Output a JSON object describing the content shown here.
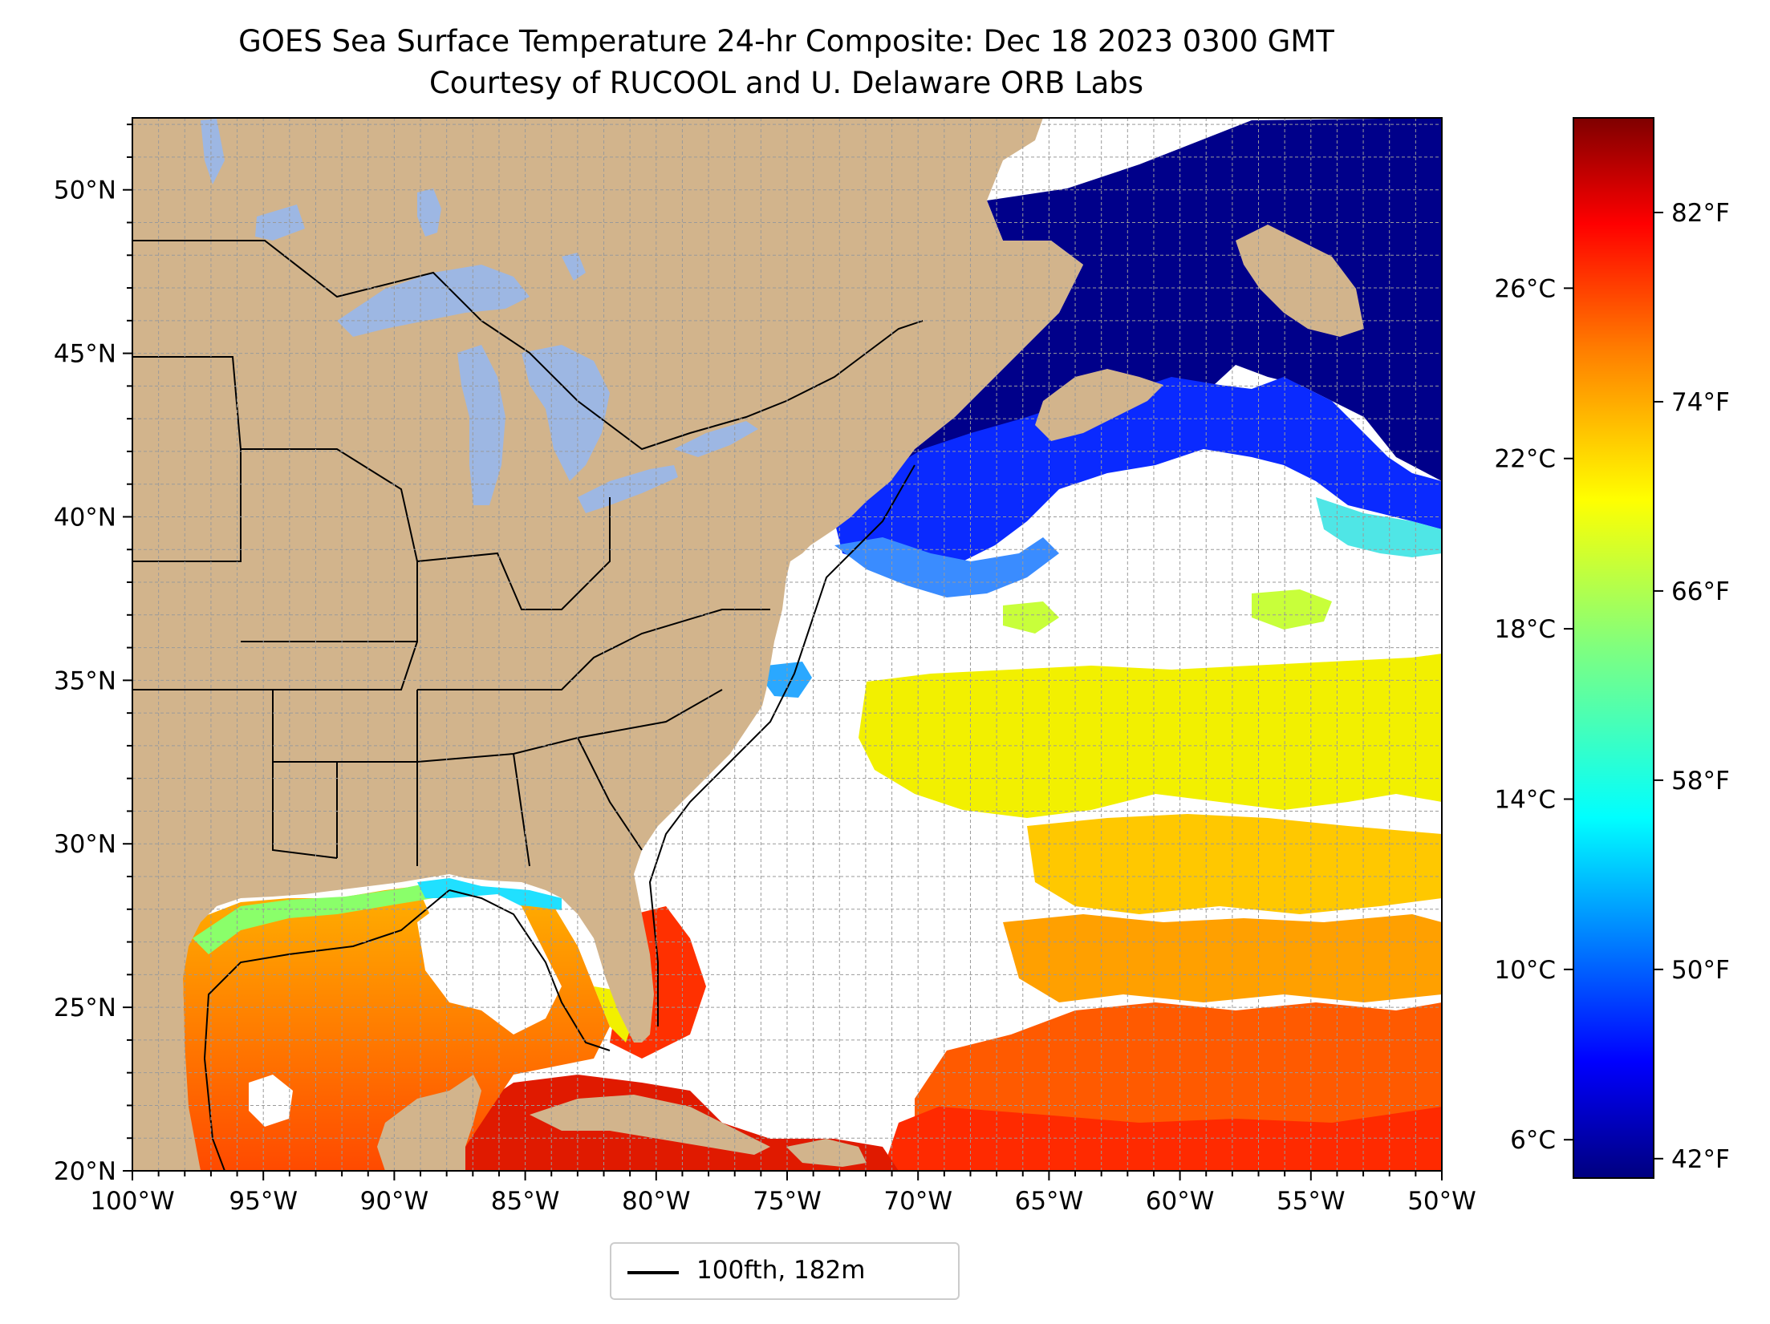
{
  "title_line1": "GOES Sea Surface Temperature 24-hr Composite: Dec 18 2023 0300 GMT",
  "title_line2": "Courtesy of RUCOOL and U. Delaware ORB Labs",
  "map": {
    "lon_range": [
      -100,
      -50
    ],
    "lat_range": [
      20,
      52.2
    ],
    "lon_ticks": [
      -100,
      -95,
      -90,
      -85,
      -80,
      -75,
      -70,
      -65,
      -60,
      -55,
      -50
    ],
    "lon_tick_labels": [
      "100°W",
      "95°W",
      "90°W",
      "85°W",
      "80°W",
      "75°W",
      "70°W",
      "65°W",
      "60°W",
      "55°W",
      "50°W"
    ],
    "lat_ticks": [
      20,
      25,
      30,
      35,
      40,
      45,
      50
    ],
    "lat_tick_labels": [
      "20°N",
      "25°N",
      "30°N",
      "35°N",
      "40°N",
      "45°N",
      "50°N"
    ],
    "gridlines": true,
    "land_color": "#d2b48c",
    "lake_color": "#9db7e3",
    "no_data_color": "#ffffff"
  },
  "legend": {
    "placement": "below map",
    "label": "100fth, 182m"
  },
  "colorbar": {
    "colormap": "jet",
    "celsius_ticks": [
      6,
      10,
      14,
      18,
      22,
      26
    ],
    "celsius_labels": [
      "6°C",
      "10°C",
      "14°C",
      "18°C",
      "22°C",
      "26°C"
    ],
    "fahrenheit_ticks": [
      42,
      50,
      58,
      66,
      74,
      82
    ],
    "fahrenheit_labels": [
      "42°F",
      "50°F",
      "58°F",
      "66°F",
      "74°F",
      "82°F"
    ],
    "range_c": [
      5.1,
      30
    ],
    "colors": [
      "#00007f",
      "#0000ff",
      "#007fff",
      "#00ffff",
      "#7fff7f",
      "#ffff00",
      "#ff7f00",
      "#ff0000",
      "#7f0000"
    ]
  }
}
